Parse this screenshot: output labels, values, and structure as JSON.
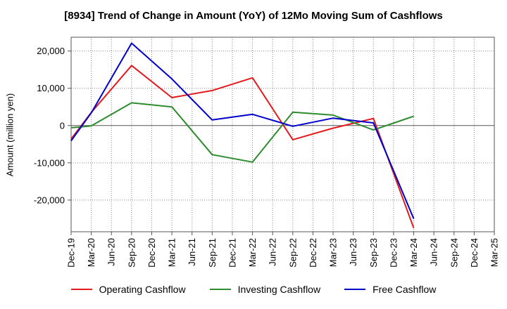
{
  "chart_data": {
    "type": "line",
    "title": "[8934]  Trend of Change in Amount (YoY) of 12Mo Moving Sum of Cashflows",
    "xlabel": "",
    "ylabel": "Amount (million yen)",
    "categories": [
      "Dec-19",
      "Mar-20",
      "Jun-20",
      "Sep-20",
      "Dec-20",
      "Mar-21",
      "Jun-21",
      "Sep-21",
      "Dec-21",
      "Mar-22",
      "Jun-22",
      "Sep-22",
      "Dec-22",
      "Mar-23",
      "Jun-23",
      "Sep-23",
      "Dec-23",
      "Mar-24",
      "Jun-24",
      "Sep-24",
      "Dec-24",
      "Mar-25"
    ],
    "y_ticks": [
      20000,
      10000,
      0,
      -10000,
      -20000
    ],
    "y_tick_labels": [
      "20,000",
      "10,000",
      "0",
      "-10,000",
      "-20,000"
    ],
    "ylim": [
      -28500,
      23700
    ],
    "grid": true,
    "legend_position": "bottom",
    "series": [
      {
        "name": "Operating Cashflow",
        "color": "#e41a1c",
        "values": [
          -3600,
          3500,
          null,
          16100,
          null,
          7500,
          null,
          9400,
          null,
          12800,
          null,
          -3800,
          null,
          -700,
          null,
          1900,
          null,
          -27500,
          null,
          null,
          null,
          null
        ]
      },
      {
        "name": "Investing Cashflow",
        "color": "#2e8b2e",
        "values": [
          -600,
          -100,
          null,
          6100,
          null,
          5000,
          null,
          -7800,
          null,
          -9800,
          null,
          3600,
          null,
          2800,
          null,
          -1200,
          null,
          2500,
          null,
          null,
          null,
          null
        ]
      },
      {
        "name": "Free Cashflow",
        "color": "#0000cc",
        "values": [
          -4100,
          3400,
          null,
          22100,
          null,
          12500,
          null,
          1500,
          null,
          3000,
          null,
          -200,
          null,
          2000,
          null,
          700,
          null,
          -25000,
          null,
          null,
          null,
          null
        ]
      }
    ]
  }
}
